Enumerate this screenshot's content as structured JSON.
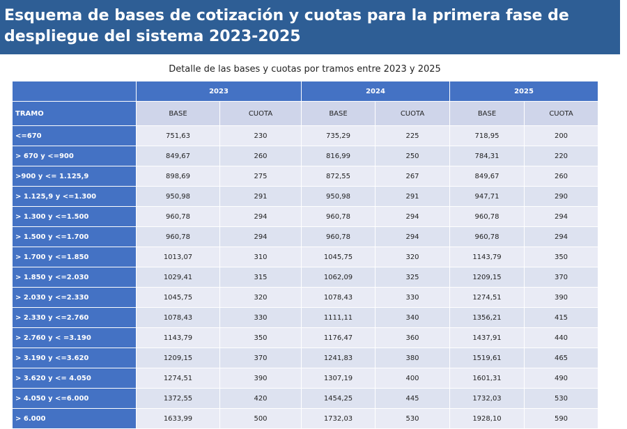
{
  "header": {
    "title": "Esquema de bases de cotización y cuotas para la primera fase de despliegue del sistema 2023-2025"
  },
  "table": {
    "caption": "Detalle de las bases y cuotas por tramos entre 2023 y 2025",
    "years": [
      "2023",
      "2024",
      "2025"
    ],
    "columns": [
      "TRAMO",
      "BASE",
      "CUOTA",
      "BASE",
      "CUOTA",
      "BASE",
      "CUOTA"
    ],
    "rows": [
      [
        "<=670",
        "751,63",
        "230",
        "735,29",
        "225",
        "718,95",
        "200"
      ],
      [
        "> 670 y <=900",
        "849,67",
        "260",
        "816,99",
        "250",
        "784,31",
        "220"
      ],
      [
        ">900 y <= 1.125,9",
        "898,69",
        "275",
        "872,55",
        "267",
        "849,67",
        "260"
      ],
      [
        "> 1.125,9 y <=1.300",
        "950,98",
        "291",
        "950,98",
        "291",
        "947,71",
        "290"
      ],
      [
        "> 1.300 y <=1.500",
        "960,78",
        "294",
        "960,78",
        "294",
        "960,78",
        "294"
      ],
      [
        "> 1.500 y <=1.700",
        "960,78",
        "294",
        "960,78",
        "294",
        "960,78",
        "294"
      ],
      [
        "> 1.700 y <=1.850",
        "1013,07",
        "310",
        "1045,75",
        "320",
        "1143,79",
        "350"
      ],
      [
        "> 1.850 y <=2.030",
        "1029,41",
        "315",
        "1062,09",
        "325",
        "1209,15",
        "370"
      ],
      [
        "> 2.030 y <=2.330",
        "1045,75",
        "320",
        "1078,43",
        "330",
        "1274,51",
        "390"
      ],
      [
        "> 2.330 y <=2.760",
        "1078,43",
        "330",
        "1111,11",
        "340",
        "1356,21",
        "415"
      ],
      [
        "> 2.760 y < =3.190",
        "1143,79",
        "350",
        "1176,47",
        "360",
        "1437,91",
        "440"
      ],
      [
        "> 3.190 y <=3.620",
        "1209,15",
        "370",
        "1241,83",
        "380",
        "1519,61",
        "465"
      ],
      [
        "> 3.620 y <= 4.050",
        "1274,51",
        "390",
        "1307,19",
        "400",
        "1601,31",
        "490"
      ],
      [
        "> 4.050 y <=6.000",
        "1372,55",
        "420",
        "1454,25",
        "445",
        "1732,03",
        "530"
      ],
      [
        "> 6.000",
        "1633,99",
        "500",
        "1732,03",
        "530",
        "1928,10",
        "590"
      ]
    ]
  }
}
